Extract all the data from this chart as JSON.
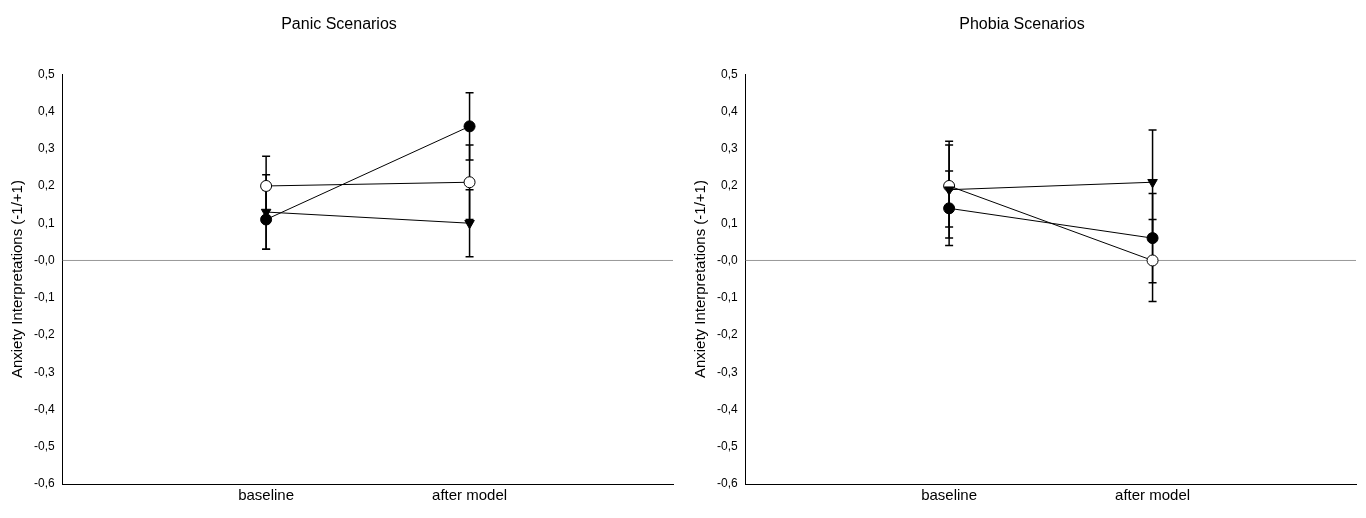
{
  "chart_data": [
    {
      "type": "line",
      "title": "Panic Scenarios",
      "ylabel": "Anxiety Interpretations (-1/+1)",
      "categories": [
        "baseline",
        "after model"
      ],
      "ylim": [
        -0.6,
        0.5
      ],
      "yticks": [
        {
          "value": 0.5,
          "label": "0,5"
        },
        {
          "value": 0.4,
          "label": "0,4"
        },
        {
          "value": 0.3,
          "label": "0,3"
        },
        {
          "value": 0.2,
          "label": "0,2"
        },
        {
          "value": 0.1,
          "label": "0,1"
        },
        {
          "value": 0,
          "label": "-0,0"
        },
        {
          "value": -0.1,
          "label": "-0,1"
        },
        {
          "value": -0.2,
          "label": "-0,2"
        },
        {
          "value": -0.3,
          "label": "-0,3"
        },
        {
          "value": -0.4,
          "label": "-0,4"
        },
        {
          "value": -0.5,
          "label": "-0,5"
        },
        {
          "value": -0.6,
          "label": "-0,6"
        }
      ],
      "ref_lines": [
        {
          "axis": "y",
          "value": 0,
          "label": null,
          "color": "#999999"
        }
      ],
      "legend": false,
      "grid": false,
      "series": [
        {
          "color": "#000000",
          "marker": "circle",
          "values": [
            0.11,
            0.36
          ],
          "errors": [
            [
              0.03,
              0.19
            ],
            [
              0.27,
              0.45
            ]
          ]
        },
        {
          "color": "#000000",
          "marker": "triangle",
          "values": [
            0.13,
            0.1
          ],
          "errors": [
            [
              0.03,
              0.23
            ],
            [
              0.01,
              0.19
            ]
          ]
        },
        {
          "color": "#000000",
          "colors": [
            "#ffffff",
            "#ffffff"
          ],
          "marker": "circle",
          "values": [
            0.2,
            0.21
          ],
          "errors": [
            [
              0.12,
              0.28
            ],
            [
              0.11,
              0.31
            ]
          ]
        }
      ]
    },
    {
      "type": "line",
      "title": "Phobia Scenarios",
      "ylabel": "Anxiety Interpretations (-1/+1)",
      "categories": [
        "baseline",
        "after model"
      ],
      "ylim": [
        -0.6,
        0.5
      ],
      "yticks": [
        {
          "value": 0.5,
          "label": "0,5"
        },
        {
          "value": 0.4,
          "label": "0,4"
        },
        {
          "value": 0.3,
          "label": "0,3"
        },
        {
          "value": 0.2,
          "label": "0,2"
        },
        {
          "value": 0.1,
          "label": "0,1"
        },
        {
          "value": 0,
          "label": "-0,0"
        },
        {
          "value": -0.1,
          "label": "-0,1"
        },
        {
          "value": -0.2,
          "label": "-0,2"
        },
        {
          "value": -0.3,
          "label": "-0,3"
        },
        {
          "value": -0.4,
          "label": "-0,4"
        },
        {
          "value": -0.5,
          "label": "-0,5"
        },
        {
          "value": -0.6,
          "label": "-0,6"
        }
      ],
      "ref_lines": [
        {
          "axis": "y",
          "value": 0,
          "label": null,
          "color": "#999999"
        }
      ],
      "legend": false,
      "grid": false,
      "series": [
        {
          "color": "#000000",
          "marker": "circle",
          "values": [
            0.14,
            0.06
          ],
          "errors": [
            [
              0.04,
              0.24
            ],
            [
              -0.06,
              0.18
            ]
          ]
        },
        {
          "color": "#000000",
          "marker": "triangle",
          "values": [
            0.19,
            0.21
          ],
          "errors": [
            [
              0.06,
              0.32
            ],
            [
              0.07,
              0.35
            ]
          ]
        },
        {
          "color": "#000000",
          "colors": [
            "#ffffff",
            "#ffffff"
          ],
          "marker": "circle",
          "values": [
            0.2,
            0.0
          ],
          "errors": [
            [
              0.09,
              0.31
            ],
            [
              -0.11,
              0.11
            ]
          ]
        }
      ]
    }
  ]
}
